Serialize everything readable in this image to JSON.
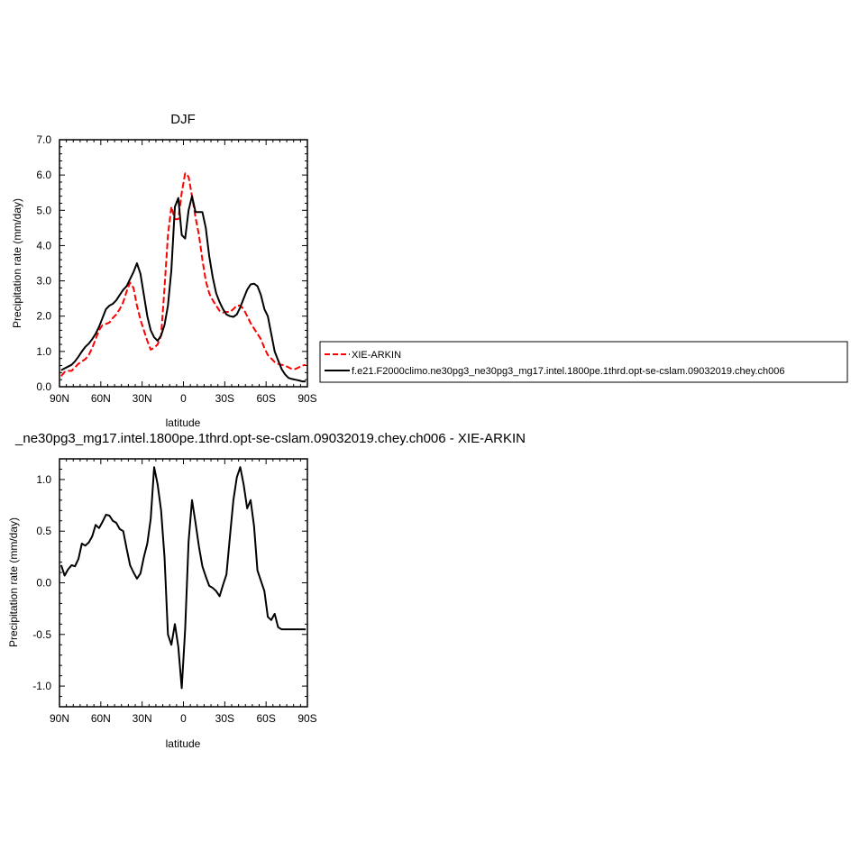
{
  "chart_data": [
    {
      "type": "line",
      "title": "DJF",
      "xlabel": "latitude",
      "ylabel": "Precipitation rate (mm/day)",
      "xlim": [
        90,
        -90
      ],
      "ylim": [
        0,
        7
      ],
      "x_ticks": [
        90,
        60,
        30,
        0,
        -30,
        -60,
        -90
      ],
      "x_tick_labels": [
        "90N",
        "60N",
        "30N",
        "0",
        "30S",
        "60S",
        "90S"
      ],
      "y_ticks": [
        0,
        1,
        2,
        3,
        4,
        5,
        6,
        7
      ],
      "y_tick_labels": [
        "0.0",
        "1.0",
        "2.0",
        "3.0",
        "4.0",
        "5.0",
        "6.0",
        "7.0"
      ],
      "legend_position": "right",
      "series": [
        {
          "name": "XIE-ARKIN",
          "color": "#ff0000",
          "dash": "dashed",
          "x": [
            88.75,
            86.25,
            83.75,
            81.25,
            78.75,
            76.25,
            73.75,
            71.25,
            68.75,
            66.25,
            63.75,
            61.25,
            58.75,
            56.25,
            53.75,
            51.25,
            48.75,
            46.25,
            43.75,
            41.25,
            38.75,
            36.25,
            33.75,
            31.25,
            28.75,
            26.25,
            23.75,
            21.25,
            18.75,
            16.25,
            13.75,
            11.25,
            8.75,
            6.25,
            3.75,
            1.25,
            -1.25,
            -3.75,
            -6.25,
            -8.75,
            -11.25,
            -13.75,
            -16.25,
            -18.75,
            -21.25,
            -23.75,
            -26.25,
            -28.75,
            -31.25,
            -33.75,
            -36.25,
            -38.75,
            -41.25,
            -43.75,
            -46.25,
            -48.75,
            -51.25,
            -53.75,
            -56.25,
            -58.75,
            -61.25,
            -63.75,
            -66.25,
            -68.75,
            -71.25,
            -73.75,
            -76.25,
            -78.75,
            -81.25,
            -83.75,
            -86.25,
            -88.75
          ],
          "values": [
            0.3,
            0.42,
            0.45,
            0.45,
            0.55,
            0.65,
            0.72,
            0.78,
            0.9,
            1.1,
            1.35,
            1.6,
            1.75,
            1.78,
            1.82,
            1.95,
            2.05,
            2.2,
            2.4,
            2.7,
            2.95,
            2.8,
            2.3,
            1.9,
            1.6,
            1.3,
            1.05,
            1.1,
            1.2,
            1.45,
            2.8,
            4.3,
            5.1,
            4.75,
            4.75,
            5.5,
            6.05,
            5.95,
            5.4,
            4.8,
            4.3,
            3.6,
            3.0,
            2.65,
            2.45,
            2.3,
            2.15,
            2.1,
            2.12,
            2.12,
            2.2,
            2.3,
            2.3,
            2.2,
            2.0,
            1.8,
            1.65,
            1.5,
            1.35,
            1.1,
            0.9,
            0.8,
            0.7,
            0.65,
            0.62,
            0.6,
            0.55,
            0.5,
            0.5,
            0.55,
            0.6,
            0.62
          ]
        },
        {
          "name": "f.e21.F2000climo.ne30pg3_ne30pg3_mg17.intel.1800pe.1thrd.opt-se-cslam.09032019.chey.ch006",
          "color": "#000000",
          "dash": "solid",
          "x": [
            88.75,
            86.25,
            83.75,
            81.25,
            78.75,
            76.25,
            73.75,
            71.25,
            68.75,
            66.25,
            63.75,
            61.25,
            58.75,
            56.25,
            53.75,
            51.25,
            48.75,
            46.25,
            43.75,
            41.25,
            38.75,
            36.25,
            33.75,
            31.25,
            28.75,
            26.25,
            23.75,
            21.25,
            18.75,
            16.25,
            13.75,
            11.25,
            8.75,
            6.25,
            3.75,
            1.25,
            -1.25,
            -3.75,
            -6.25,
            -8.75,
            -11.25,
            -13.75,
            -16.25,
            -18.75,
            -21.25,
            -23.75,
            -26.25,
            -28.75,
            -31.25,
            -33.75,
            -36.25,
            -38.75,
            -41.25,
            -43.75,
            -46.25,
            -48.75,
            -51.25,
            -53.75,
            -56.25,
            -58.75,
            -61.25,
            -63.75,
            -66.25,
            -68.75,
            -71.25,
            -73.75,
            -76.25,
            -78.75,
            -81.25,
            -83.75,
            -86.25,
            -88.75
          ],
          "values": [
            0.47,
            0.52,
            0.57,
            0.62,
            0.72,
            0.85,
            1.0,
            1.13,
            1.22,
            1.35,
            1.5,
            1.7,
            1.95,
            2.2,
            2.3,
            2.35,
            2.45,
            2.6,
            2.75,
            2.85,
            3.05,
            3.25,
            3.5,
            3.2,
            2.6,
            2.0,
            1.6,
            1.4,
            1.3,
            1.45,
            1.75,
            2.3,
            3.3,
            5.1,
            5.35,
            4.3,
            4.2,
            5.0,
            5.4,
            4.95,
            4.95,
            4.95,
            4.5,
            3.7,
            3.1,
            2.65,
            2.4,
            2.2,
            2.05,
            2.0,
            1.98,
            2.05,
            2.25,
            2.5,
            2.75,
            2.9,
            2.92,
            2.85,
            2.6,
            2.2,
            2.0,
            1.5,
            1.0,
            0.75,
            0.5,
            0.35,
            0.25,
            0.22,
            0.2,
            0.18,
            0.15,
            0.15
          ]
        }
      ]
    },
    {
      "type": "line",
      "title": "_ne30pg3_mg17.intel.1800pe.1thrd.opt-se-cslam.09032019.chey.ch006 - XIE-ARKIN",
      "xlabel": "latitude",
      "ylabel": "Precipitation rate (mm/day)",
      "xlim": [
        90,
        -90
      ],
      "ylim": [
        -1.2,
        1.2
      ],
      "x_ticks": [
        90,
        60,
        30,
        0,
        -30,
        -60,
        -90
      ],
      "x_tick_labels": [
        "90N",
        "60N",
        "30N",
        "0",
        "30S",
        "60S",
        "90S"
      ],
      "y_ticks": [
        -1.0,
        -0.5,
        0.0,
        0.5,
        1.0
      ],
      "y_tick_labels": [
        "-1.0",
        "-0.5",
        "0.0",
        "0.5",
        "1.0"
      ],
      "series": [
        {
          "color": "#000000",
          "dash": "solid",
          "x": [
            88.75,
            86.25,
            83.75,
            81.25,
            78.75,
            76.25,
            73.75,
            71.25,
            68.75,
            66.25,
            63.75,
            61.25,
            58.75,
            56.25,
            53.75,
            51.25,
            48.75,
            46.25,
            43.75,
            41.25,
            38.75,
            36.25,
            33.75,
            31.25,
            28.75,
            26.25,
            23.75,
            21.25,
            18.75,
            16.25,
            13.75,
            11.25,
            8.75,
            6.25,
            3.75,
            1.25,
            -1.25,
            -3.75,
            -6.25,
            -8.75,
            -11.25,
            -13.75,
            -16.25,
            -18.75,
            -21.25,
            -23.75,
            -26.25,
            -28.75,
            -31.25,
            -33.75,
            -36.25,
            -38.75,
            -41.25,
            -43.75,
            -46.25,
            -48.75,
            -51.25,
            -53.75,
            -56.25,
            -58.75,
            -61.25,
            -63.75,
            -66.25,
            -68.75,
            -71.25,
            -73.75,
            -76.25,
            -78.75,
            -81.25,
            -83.75,
            -86.25,
            -88.75
          ],
          "values": [
            0.17,
            0.07,
            0.13,
            0.17,
            0.16,
            0.23,
            0.38,
            0.36,
            0.39,
            0.45,
            0.56,
            0.53,
            0.59,
            0.66,
            0.65,
            0.6,
            0.58,
            0.52,
            0.5,
            0.33,
            0.17,
            0.1,
            0.04,
            0.09,
            0.25,
            0.38,
            0.62,
            1.12,
            0.95,
            0.7,
            0.25,
            -0.5,
            -0.6,
            -0.4,
            -0.62,
            -1.02,
            -0.45,
            0.4,
            0.8,
            0.58,
            0.35,
            0.16,
            0.06,
            -0.03,
            -0.05,
            -0.08,
            -0.13,
            -0.02,
            0.08,
            0.45,
            0.8,
            1.02,
            1.12,
            0.95,
            0.72,
            0.8,
            0.55,
            0.12,
            0.02,
            -0.08,
            -0.33,
            -0.36,
            -0.3,
            -0.43,
            -0.45,
            -0.45,
            -0.45,
            -0.45,
            -0.45,
            -0.45,
            -0.45,
            -0.45
          ]
        }
      ]
    }
  ]
}
